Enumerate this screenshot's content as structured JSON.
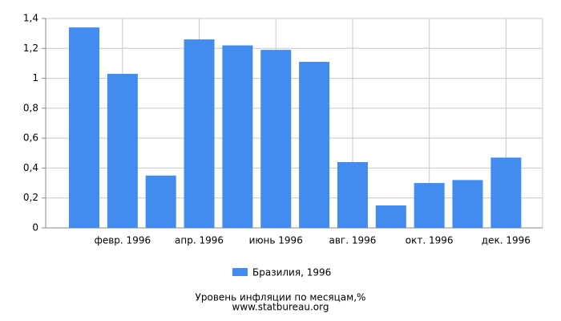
{
  "chart_data": {
    "type": "bar",
    "title": "Уровень инфляции по месяцам,%",
    "source": "www.statbureau.org",
    "categories": [
      null,
      "февр. 1996",
      null,
      "апр. 1996",
      null,
      "июнь 1996",
      null,
      "авг. 1996",
      null,
      "окт. 1996",
      null,
      "дек. 1996"
    ],
    "series": [
      {
        "name": "Бразилия, 1996",
        "color": "#428bef",
        "values": [
          1.34,
          1.03,
          0.35,
          1.26,
          1.22,
          1.19,
          1.11,
          0.44,
          0.15,
          0.3,
          0.32,
          0.47
        ]
      }
    ],
    "ylim": [
      0,
      1.4
    ],
    "yticks": [
      0,
      {
        "value": 0.2,
        "label": "0,2"
      },
      {
        "value": 0.4,
        "label": "0,4"
      },
      {
        "value": 0.6,
        "label": "0,6"
      },
      {
        "value": 0.8,
        "label": "0,8"
      },
      1,
      {
        "value": 1.2,
        "label": "1,2"
      },
      {
        "value": 1.4,
        "label": "1,4"
      }
    ],
    "grid": true
  }
}
